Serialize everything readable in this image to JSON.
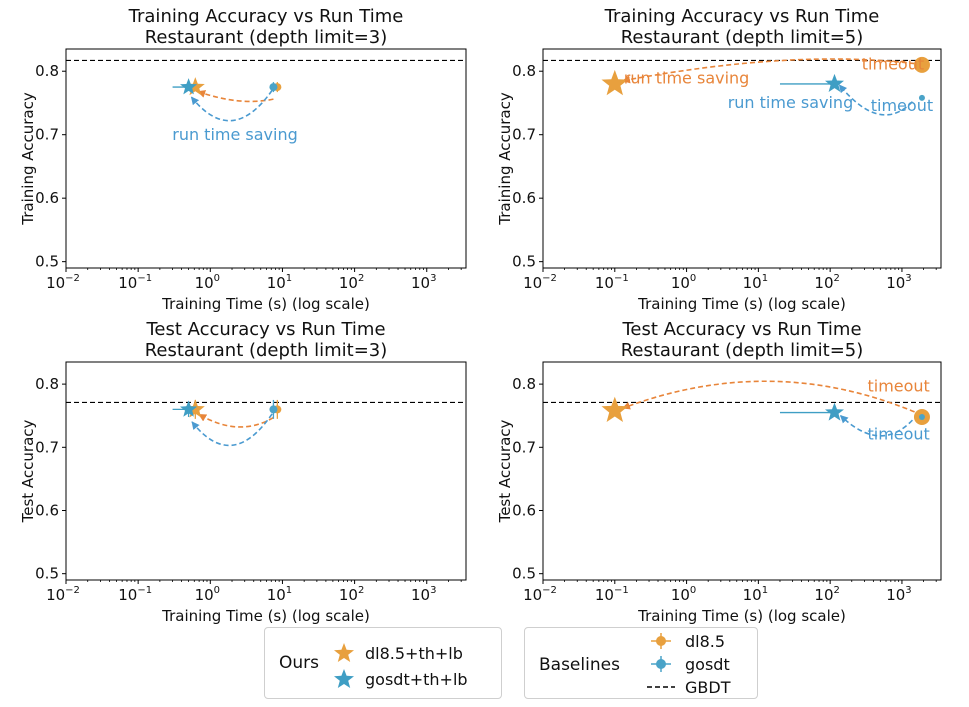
{
  "colors": {
    "ours_dl85": "#e8a03e",
    "ours_gosdt": "#3f9ec4",
    "baseline_dl85": "#e8a03e",
    "baseline_gosdt": "#4aa3c8",
    "gbdt": "#000000",
    "ann_orange": "#e8853a",
    "ann_blue": "#4a9ad0"
  },
  "chart_data": [
    {
      "type": "scatter",
      "title_line1": "Training Accuracy vs Run Time",
      "title_line2": "Restaurant (depth limit=3)",
      "xlabel": "Training Time (s) (log scale)",
      "ylabel": "Training Accuracy",
      "xscale": "log",
      "xlim": [
        0.01,
        3500
      ],
      "ylim": [
        0.49,
        0.835
      ],
      "xticks": [
        {
          "v": 0.01,
          "base": "10",
          "exp": "−2"
        },
        {
          "v": 0.1,
          "base": "10",
          "exp": "−1"
        },
        {
          "v": 1,
          "base": "10",
          "exp": "0"
        },
        {
          "v": 10,
          "base": "10",
          "exp": "1"
        },
        {
          "v": 100,
          "base": "10",
          "exp": "2"
        },
        {
          "v": 1000,
          "base": "10",
          "exp": "3"
        }
      ],
      "yticks": [
        {
          "v": 0.5,
          "label": "0.5"
        },
        {
          "v": 0.6,
          "label": "0.6"
        },
        {
          "v": 0.7,
          "label": "0.7"
        },
        {
          "v": 0.8,
          "label": "0.8"
        }
      ],
      "gbdt": 0.817,
      "points": [
        {
          "series": "dl8.5",
          "x": 8.5,
          "y": 0.775,
          "kind": "circle",
          "size": 4,
          "err": 0.5
        },
        {
          "series": "gosdt",
          "x": 7.5,
          "y": 0.775,
          "kind": "circle",
          "size": 4,
          "err": 0.5
        },
        {
          "series": "dl8.5+th+lb",
          "x": 0.62,
          "y": 0.775,
          "kind": "star",
          "size": 10,
          "errx": [
            0.58,
            0.66
          ]
        },
        {
          "series": "gosdt+th+lb",
          "x": 0.5,
          "y": 0.775,
          "kind": "star",
          "size": 9,
          "errx": [
            0.3,
            0.5
          ]
        }
      ],
      "arrows": [
        {
          "color": "orange",
          "from": [
            7.5,
            0.756
          ],
          "to": [
            0.68,
            0.768
          ],
          "ctrl": [
            2.5,
            0.745
          ]
        },
        {
          "color": "blue",
          "from": [
            7.2,
            0.77
          ],
          "to": [
            0.55,
            0.759
          ],
          "ctrl": [
            2.0,
            0.68
          ]
        }
      ],
      "annotations": [
        {
          "text": "run time saving",
          "color": "blue",
          "x": 2.2,
          "y": 0.692
        }
      ]
    },
    {
      "type": "scatter",
      "title_line1": "Training Accuracy vs Run Time",
      "title_line2": "Restaurant (depth limit=5)",
      "xlabel": "Training Time (s) (log scale)",
      "ylabel": "Training Accuracy",
      "xscale": "log",
      "xlim": [
        0.01,
        3500
      ],
      "ylim": [
        0.49,
        0.835
      ],
      "xticks": [
        {
          "v": 0.01,
          "base": "10",
          "exp": "−2"
        },
        {
          "v": 0.1,
          "base": "10",
          "exp": "−1"
        },
        {
          "v": 1,
          "base": "10",
          "exp": "0"
        },
        {
          "v": 10,
          "base": "10",
          "exp": "1"
        },
        {
          "v": 100,
          "base": "10",
          "exp": "2"
        },
        {
          "v": 1000,
          "base": "10",
          "exp": "3"
        }
      ],
      "yticks": [
        {
          "v": 0.5,
          "label": "0.5"
        },
        {
          "v": 0.6,
          "label": "0.6"
        },
        {
          "v": 0.7,
          "label": "0.7"
        },
        {
          "v": 0.8,
          "label": "0.8"
        }
      ],
      "gbdt": 0.817,
      "points": [
        {
          "series": "dl8.5",
          "x": 1900,
          "y": 0.81,
          "kind": "circle",
          "size": 8,
          "err": 0
        },
        {
          "series": "gosdt",
          "x": 1900,
          "y": 0.758,
          "kind": "circle",
          "size": 3,
          "err": 0
        },
        {
          "series": "dl8.5+th+lb",
          "x": 0.1,
          "y": 0.78,
          "kind": "star",
          "size": 14,
          "errx": [
            0.1,
            0.1
          ]
        },
        {
          "series": "gosdt+th+lb",
          "x": 115,
          "y": 0.78,
          "kind": "star",
          "size": 10,
          "errx": [
            20,
            115
          ]
        }
      ],
      "arrows": [
        {
          "color": "orange",
          "from": [
            1500,
            0.812
          ],
          "to": [
            0.13,
            0.785
          ],
          "ctrl": [
            30,
            0.835
          ]
        },
        {
          "color": "blue",
          "from": [
            1400,
            0.752
          ],
          "to": [
            135,
            0.778
          ],
          "ctrl": [
            500,
            0.7
          ]
        }
      ],
      "annotations": [
        {
          "text": "timeout",
          "color": "orange",
          "x": 750,
          "y": 0.803
        },
        {
          "text": "run time saving",
          "color": "orange",
          "x": 1.0,
          "y": 0.781
        },
        {
          "text": "run time saving",
          "color": "blue",
          "x": 28,
          "y": 0.742
        },
        {
          "text": "timeout",
          "color": "blue",
          "x": 1000,
          "y": 0.737
        }
      ]
    },
    {
      "type": "scatter",
      "title_line1": "Test Accuracy vs Run Time",
      "title_line2": "Restaurant (depth limit=3)",
      "xlabel": "Training Time (s) (log scale)",
      "ylabel": "Test Accuracy",
      "xscale": "log",
      "xlim": [
        0.01,
        3500
      ],
      "ylim": [
        0.49,
        0.835
      ],
      "xticks": [
        {
          "v": 0.01,
          "base": "10",
          "exp": "−2"
        },
        {
          "v": 0.1,
          "base": "10",
          "exp": "−1"
        },
        {
          "v": 1,
          "base": "10",
          "exp": "0"
        },
        {
          "v": 10,
          "base": "10",
          "exp": "1"
        },
        {
          "v": 100,
          "base": "10",
          "exp": "2"
        },
        {
          "v": 1000,
          "base": "10",
          "exp": "3"
        }
      ],
      "yticks": [
        {
          "v": 0.5,
          "label": "0.5"
        },
        {
          "v": 0.6,
          "label": "0.6"
        },
        {
          "v": 0.7,
          "label": "0.7"
        },
        {
          "v": 0.8,
          "label": "0.8"
        }
      ],
      "gbdt": 0.771,
      "points": [
        {
          "series": "dl8.5",
          "x": 8.5,
          "y": 0.76,
          "kind": "circle",
          "size": 4,
          "err": 0.015
        },
        {
          "series": "gosdt",
          "x": 7.5,
          "y": 0.76,
          "kind": "circle",
          "size": 4,
          "err": 0.015
        },
        {
          "series": "dl8.5+th+lb",
          "x": 0.62,
          "y": 0.76,
          "kind": "star",
          "size": 10,
          "errx": [
            0.58,
            0.66
          ],
          "erry": 0.015
        },
        {
          "series": "gosdt+th+lb",
          "x": 0.5,
          "y": 0.76,
          "kind": "star",
          "size": 9,
          "errx": [
            0.3,
            0.5
          ],
          "erry": 0.012
        }
      ],
      "arrows": [
        {
          "color": "orange",
          "from": [
            7.5,
            0.747
          ],
          "to": [
            0.7,
            0.752
          ],
          "ctrl": [
            2.5,
            0.715
          ]
        },
        {
          "color": "blue",
          "from": [
            7.2,
            0.753
          ],
          "to": [
            0.56,
            0.74
          ],
          "ctrl": [
            2.0,
            0.66
          ]
        }
      ],
      "annotations": []
    },
    {
      "type": "scatter",
      "title_line1": "Test Accuracy vs Run Time",
      "title_line2": "Restaurant (depth limit=5)",
      "xlabel": "Training Time (s) (log scale)",
      "ylabel": "Test Accuracy",
      "xscale": "log",
      "xlim": [
        0.01,
        3500
      ],
      "ylim": [
        0.49,
        0.835
      ],
      "xticks": [
        {
          "v": 0.01,
          "base": "10",
          "exp": "−2"
        },
        {
          "v": 0.1,
          "base": "10",
          "exp": "−1"
        },
        {
          "v": 1,
          "base": "10",
          "exp": "0"
        },
        {
          "v": 10,
          "base": "10",
          "exp": "1"
        },
        {
          "v": 100,
          "base": "10",
          "exp": "2"
        },
        {
          "v": 1000,
          "base": "10",
          "exp": "3"
        }
      ],
      "yticks": [
        {
          "v": 0.5,
          "label": "0.5"
        },
        {
          "v": 0.6,
          "label": "0.6"
        },
        {
          "v": 0.7,
          "label": "0.7"
        },
        {
          "v": 0.8,
          "label": "0.8"
        }
      ],
      "gbdt": 0.771,
      "points": [
        {
          "series": "dl8.5",
          "x": 1900,
          "y": 0.748,
          "kind": "circle",
          "size": 8,
          "err": 0
        },
        {
          "series": "gosdt",
          "x": 1900,
          "y": 0.748,
          "kind": "circle",
          "size": 3,
          "err": 0
        },
        {
          "series": "dl8.5+th+lb",
          "x": 0.1,
          "y": 0.758,
          "kind": "star",
          "size": 14,
          "errx": [
            0.1,
            0.1
          ]
        },
        {
          "series": "gosdt+th+lb",
          "x": 115,
          "y": 0.755,
          "kind": "star",
          "size": 10,
          "errx": [
            20,
            115
          ]
        }
      ],
      "arrows": [
        {
          "color": "orange",
          "from": [
            1500,
            0.756
          ],
          "to": [
            0.13,
            0.762
          ],
          "ctrl": [
            15,
            0.85
          ]
        },
        {
          "color": "blue",
          "from": [
            1400,
            0.743
          ],
          "to": [
            140,
            0.75
          ],
          "ctrl": [
            500,
            0.69
          ]
        }
      ],
      "annotations": [
        {
          "text": "timeout",
          "color": "orange",
          "x": 900,
          "y": 0.788
        },
        {
          "text": "timeout",
          "color": "blue",
          "x": 900,
          "y": 0.712
        }
      ]
    }
  ],
  "legend_ours": {
    "title": "Ours",
    "items": [
      {
        "label": "dl8.5+th+lb",
        "marker": "star",
        "color": "#e8a03e"
      },
      {
        "label": "gosdt+th+lb",
        "marker": "star",
        "color": "#3f9ec4"
      }
    ]
  },
  "legend_baselines": {
    "title": "Baselines",
    "items": [
      {
        "label": "dl8.5",
        "marker": "circle-err",
        "color": "#e8a03e"
      },
      {
        "label": "gosdt",
        "marker": "circle-err",
        "color": "#4aa3c8"
      },
      {
        "label": "GBDT",
        "marker": "dash",
        "color": "#000000"
      }
    ]
  }
}
